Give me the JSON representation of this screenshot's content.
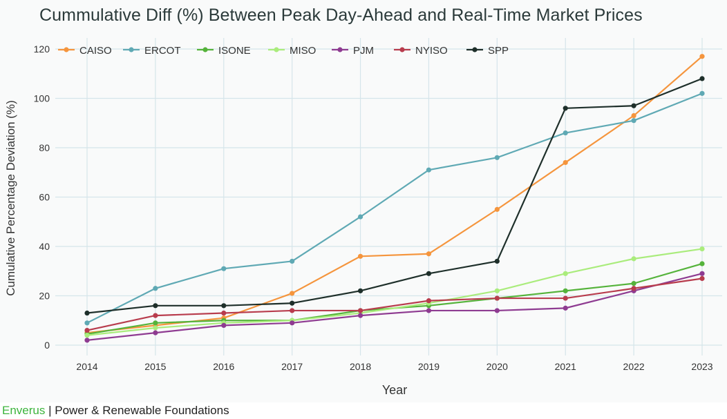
{
  "footer": {
    "brand": "Enverus",
    "separator": " | ",
    "text": "Power & Renewable Foundations",
    "brand_color": "#3cb43c"
  },
  "chart_data": {
    "type": "line",
    "title": "Cummulative Diff (%) Between Peak Day-Ahead and Real-Time Market Prices",
    "xlabel": "Year",
    "ylabel": "Cumulative Percentage Deviation (%)",
    "x": [
      "2014",
      "2015",
      "2016",
      "2017",
      "2018",
      "2019",
      "2020",
      "2021",
      "2022",
      "2023"
    ],
    "ylim": [
      0,
      120
    ],
    "yticks": [
      0,
      20,
      40,
      60,
      80,
      100,
      120
    ],
    "grid": true,
    "legend_position": "top-left",
    "series": [
      {
        "name": "CAISO",
        "color": "#f5953d",
        "values": [
          5,
          8,
          11,
          21,
          36,
          37,
          55,
          74,
          93,
          117
        ]
      },
      {
        "name": "ERCOT",
        "color": "#5fa9b4",
        "values": [
          9,
          23,
          31,
          34,
          52,
          71,
          76,
          86,
          91,
          102
        ]
      },
      {
        "name": "ISONE",
        "color": "#55b33b",
        "values": [
          4.5,
          9,
          10,
          10,
          14,
          16,
          19,
          22,
          25,
          33
        ]
      },
      {
        "name": "MISO",
        "color": "#aaec7c",
        "values": [
          4,
          7,
          9,
          10,
          13,
          17,
          22,
          29,
          35,
          39
        ]
      },
      {
        "name": "PJM",
        "color": "#8e3b91",
        "values": [
          2,
          5,
          8,
          9,
          12,
          14,
          14,
          15,
          22,
          29
        ]
      },
      {
        "name": "NYISO",
        "color": "#b83c4d",
        "values": [
          6,
          12,
          13,
          14,
          14,
          18,
          19,
          19,
          23,
          27
        ]
      },
      {
        "name": "SPP",
        "color": "#1e2f2a",
        "values": [
          13,
          16,
          16,
          17,
          22,
          29,
          34,
          96,
          97,
          108
        ]
      }
    ]
  }
}
